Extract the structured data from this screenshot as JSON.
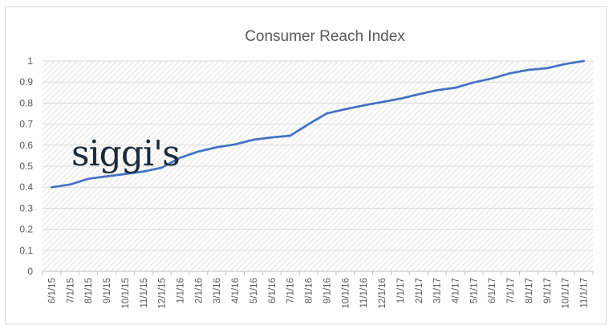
{
  "chart_data": {
    "type": "line",
    "title": "Consumer Reach Index",
    "xlabel": "",
    "ylabel": "",
    "ylim": [
      0,
      1
    ],
    "yticks": [
      "0",
      "0.1",
      "0.2",
      "0.3",
      "0.4",
      "0.5",
      "0.6",
      "0.7",
      "0.8",
      "0.9",
      "1"
    ],
    "grid": true,
    "line_color": "#4472c4",
    "categories": [
      "6/1/15",
      "7/1/15",
      "8/1/15",
      "9/1/15",
      "10/1/15",
      "11/1/15",
      "12/1/15",
      "1/1/16",
      "2/1/16",
      "3/1/16",
      "4/1/16",
      "5/1/16",
      "6/1/16",
      "7/1/16",
      "8/1/16",
      "9/1/16",
      "10/1/16",
      "11/1/16",
      "12/1/16",
      "1/1/17",
      "2/1/17",
      "3/1/17",
      "4/1/17",
      "5/1/17",
      "6/1/17",
      "7/1/17",
      "8/1/17",
      "9/1/17",
      "10/1/17",
      "11/1/17"
    ],
    "series": [
      {
        "values": [
          0.4,
          0.413,
          0.44,
          0.452,
          0.463,
          0.475,
          0.493,
          0.54,
          0.57,
          0.59,
          0.604,
          0.626,
          0.637,
          0.645,
          0.7,
          0.751,
          0.771,
          0.789,
          0.805,
          0.821,
          0.842,
          0.861,
          0.873,
          0.898,
          0.917,
          0.942,
          0.958,
          0.966,
          0.986,
          1.0
        ]
      }
    ]
  },
  "logo": {
    "text": "siggi's"
  }
}
